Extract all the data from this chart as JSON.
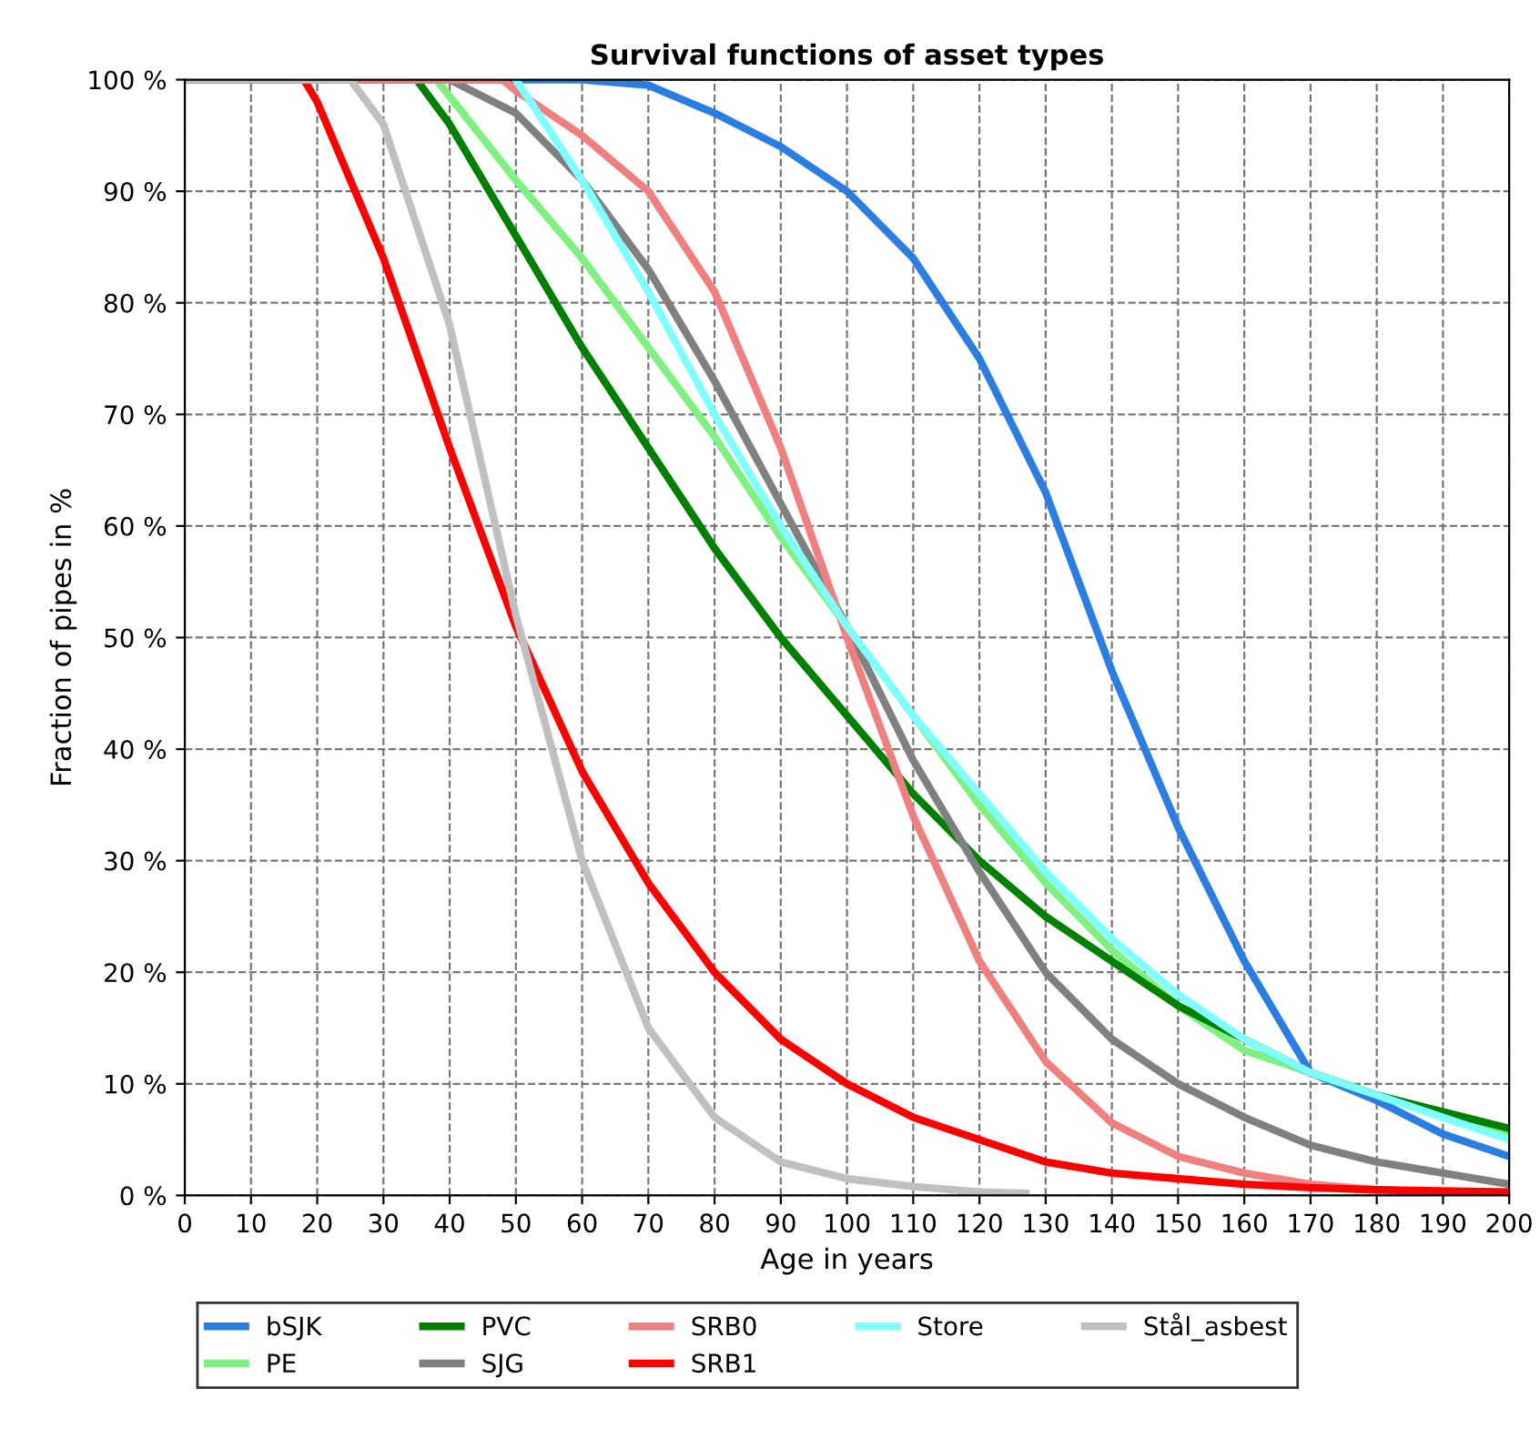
{
  "chart_data": {
    "type": "line",
    "title": "Survival functions of asset types",
    "xlabel": "Age in years",
    "ylabel": "Fraction of pipes in %",
    "xlim": [
      0,
      200
    ],
    "ylim": [
      0,
      100
    ],
    "xticks": [
      0,
      10,
      20,
      30,
      40,
      50,
      60,
      70,
      80,
      90,
      100,
      110,
      120,
      130,
      140,
      150,
      160,
      170,
      180,
      190,
      200
    ],
    "yticks": [
      {
        "value": 0,
        "label": "0 %"
      },
      {
        "value": 10,
        "label": "10 %"
      },
      {
        "value": 20,
        "label": "20 %"
      },
      {
        "value": 30,
        "label": "30 %"
      },
      {
        "value": 40,
        "label": "40 %"
      },
      {
        "value": 50,
        "label": "50 %"
      },
      {
        "value": 60,
        "label": "60 %"
      },
      {
        "value": 70,
        "label": "70 %"
      },
      {
        "value": 80,
        "label": "80 %"
      },
      {
        "value": 90,
        "label": "90 %"
      },
      {
        "value": 100,
        "label": "100 %"
      }
    ],
    "grid": true,
    "legend": "bottom",
    "line_style": "solid",
    "marker": "none",
    "series": [
      {
        "name": "bSJK",
        "color": "#2a7de1",
        "x": [
          0,
          50,
          60,
          70,
          80,
          90,
          100,
          110,
          120,
          130,
          140,
          150,
          160,
          170,
          180,
          190,
          200
        ],
        "values": [
          100,
          100,
          100,
          99.5,
          97,
          94,
          90,
          84,
          75,
          63,
          47,
          33,
          21,
          11,
          8.5,
          5.5,
          3.5
        ]
      },
      {
        "name": "PE",
        "color": "#80f080",
        "x": [
          0,
          38,
          50,
          60,
          70,
          80,
          90,
          100,
          110,
          120,
          130,
          140,
          150,
          160,
          170,
          180,
          190,
          200
        ],
        "values": [
          100,
          100,
          91,
          84,
          76,
          68,
          59,
          51,
          43,
          35,
          28,
          22,
          17,
          13,
          11,
          9,
          7,
          5.5
        ]
      },
      {
        "name": "PVC",
        "color": "#008000",
        "x": [
          0,
          35,
          40,
          50,
          60,
          70,
          80,
          90,
          100,
          110,
          120,
          130,
          140,
          150,
          160,
          170,
          180,
          190,
          200
        ],
        "values": [
          100,
          100,
          96,
          86,
          76,
          67,
          58,
          50,
          43,
          36,
          30,
          25,
          21,
          17,
          14,
          11,
          9,
          7.5,
          6
        ]
      },
      {
        "name": "SJG",
        "color": "#808080",
        "x": [
          0,
          40,
          50,
          60,
          70,
          80,
          90,
          100,
          110,
          120,
          130,
          140,
          150,
          160,
          170,
          180,
          190,
          200
        ],
        "values": [
          100,
          100,
          97,
          91,
          83,
          73,
          62,
          51,
          39,
          29,
          20,
          14,
          10,
          7,
          4.5,
          3,
          2,
          1
        ]
      },
      {
        "name": "SRB0",
        "color": "#f08080",
        "x": [
          0,
          48,
          50,
          60,
          70,
          80,
          90,
          100,
          110,
          120,
          130,
          140,
          150,
          160,
          170,
          180,
          190,
          200
        ],
        "values": [
          100,
          100,
          99,
          95,
          90,
          81,
          67,
          50,
          34,
          21,
          12,
          6.5,
          3.5,
          2,
          1,
          0.5,
          0.3,
          0.2
        ]
      },
      {
        "name": "SRB1",
        "color": "#ff0000",
        "x": [
          0,
          18,
          20,
          30,
          40,
          50,
          60,
          70,
          80,
          90,
          100,
          110,
          120,
          130,
          140,
          150,
          160,
          170,
          180,
          200
        ],
        "values": [
          100,
          100,
          98,
          84,
          67,
          51,
          38,
          28,
          20,
          14,
          10,
          7,
          5,
          3,
          2,
          1.5,
          1,
          0.7,
          0.5,
          0.3
        ]
      },
      {
        "name": "Store",
        "color": "#80ffff",
        "x": [
          50,
          60,
          70,
          80,
          90,
          100,
          110,
          120,
          130,
          140,
          150,
          160,
          170,
          180,
          190,
          200
        ],
        "values": [
          100,
          91,
          81,
          70,
          60,
          51,
          43,
          36,
          29,
          23,
          18,
          14,
          11,
          9,
          7,
          5
        ]
      },
      {
        "name": "Stål_asbest",
        "color": "#c0c0c0",
        "x": [
          0,
          25,
          30,
          40,
          50,
          60,
          70,
          80,
          90,
          100,
          110,
          120,
          127
        ],
        "values": [
          100,
          100,
          96,
          78,
          52,
          30,
          15,
          7,
          3,
          1.5,
          0.8,
          0.3,
          0.2
        ]
      }
    ]
  }
}
